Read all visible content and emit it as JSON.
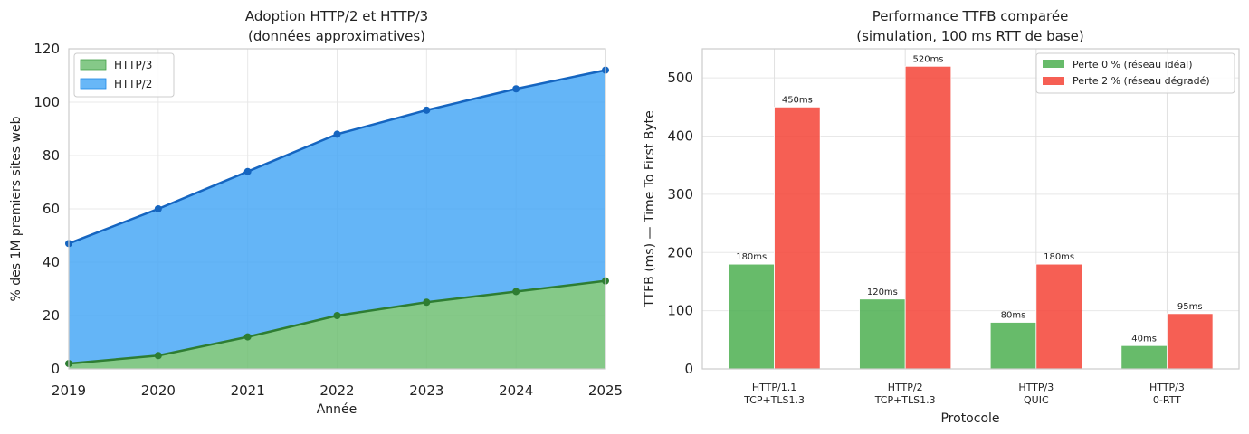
{
  "chart_data": [
    {
      "type": "area",
      "title": "Adoption HTTP/2 et HTTP/3",
      "subtitle": "(données approximatives)",
      "xlabel": "Année",
      "ylabel": "% des 1M premiers sites web",
      "x": [
        2019,
        2020,
        2021,
        2022,
        2023,
        2024,
        2025
      ],
      "xlim": [
        2019,
        2025
      ],
      "ylim": [
        0,
        120
      ],
      "yticks": [
        0,
        20,
        40,
        60,
        80,
        100,
        120
      ],
      "grid": true,
      "stacked": true,
      "legend_position": "top-left",
      "series": [
        {
          "name": "HTTP/3",
          "values": [
            2,
            5,
            12,
            20,
            25,
            29,
            33
          ],
          "fill": "#66bb6a",
          "line": "#2e7d32"
        },
        {
          "name": "HTTP/2",
          "values": [
            45,
            55,
            62,
            68,
            72,
            76,
            79
          ],
          "cumulative": [
            47,
            60,
            74,
            88,
            97,
            105,
            112
          ],
          "fill": "#42a5f5",
          "line": "#1565c0"
        }
      ]
    },
    {
      "type": "bar",
      "title": "Performance TTFB comparée",
      "subtitle": "(simulation, 100 ms RTT de base)",
      "xlabel": "Protocole",
      "ylabel": "TTFB (ms) — Time To First Byte",
      "categories": [
        [
          "HTTP/1.1",
          "TCP+TLS1.3"
        ],
        [
          "HTTP/2",
          "TCP+TLS1.3"
        ],
        [
          "HTTP/3",
          "QUIC"
        ],
        [
          "HTTP/3",
          "0-RTT"
        ]
      ],
      "ylim": [
        0,
        550
      ],
      "yticks": [
        0,
        100,
        200,
        300,
        400,
        500
      ],
      "grid": true,
      "legend_position": "top-right",
      "series": [
        {
          "name": "Perte 0 % (réseau idéal)",
          "values": [
            180,
            120,
            80,
            40
          ],
          "labels": [
            "180ms",
            "120ms",
            "80ms",
            "40ms"
          ],
          "color": "#4caf50"
        },
        {
          "name": "Perte 2 % (réseau dégradé)",
          "values": [
            450,
            520,
            180,
            95
          ],
          "labels": [
            "450ms",
            "520ms",
            "180ms",
            "95ms"
          ],
          "color": "#f44336"
        }
      ]
    }
  ]
}
